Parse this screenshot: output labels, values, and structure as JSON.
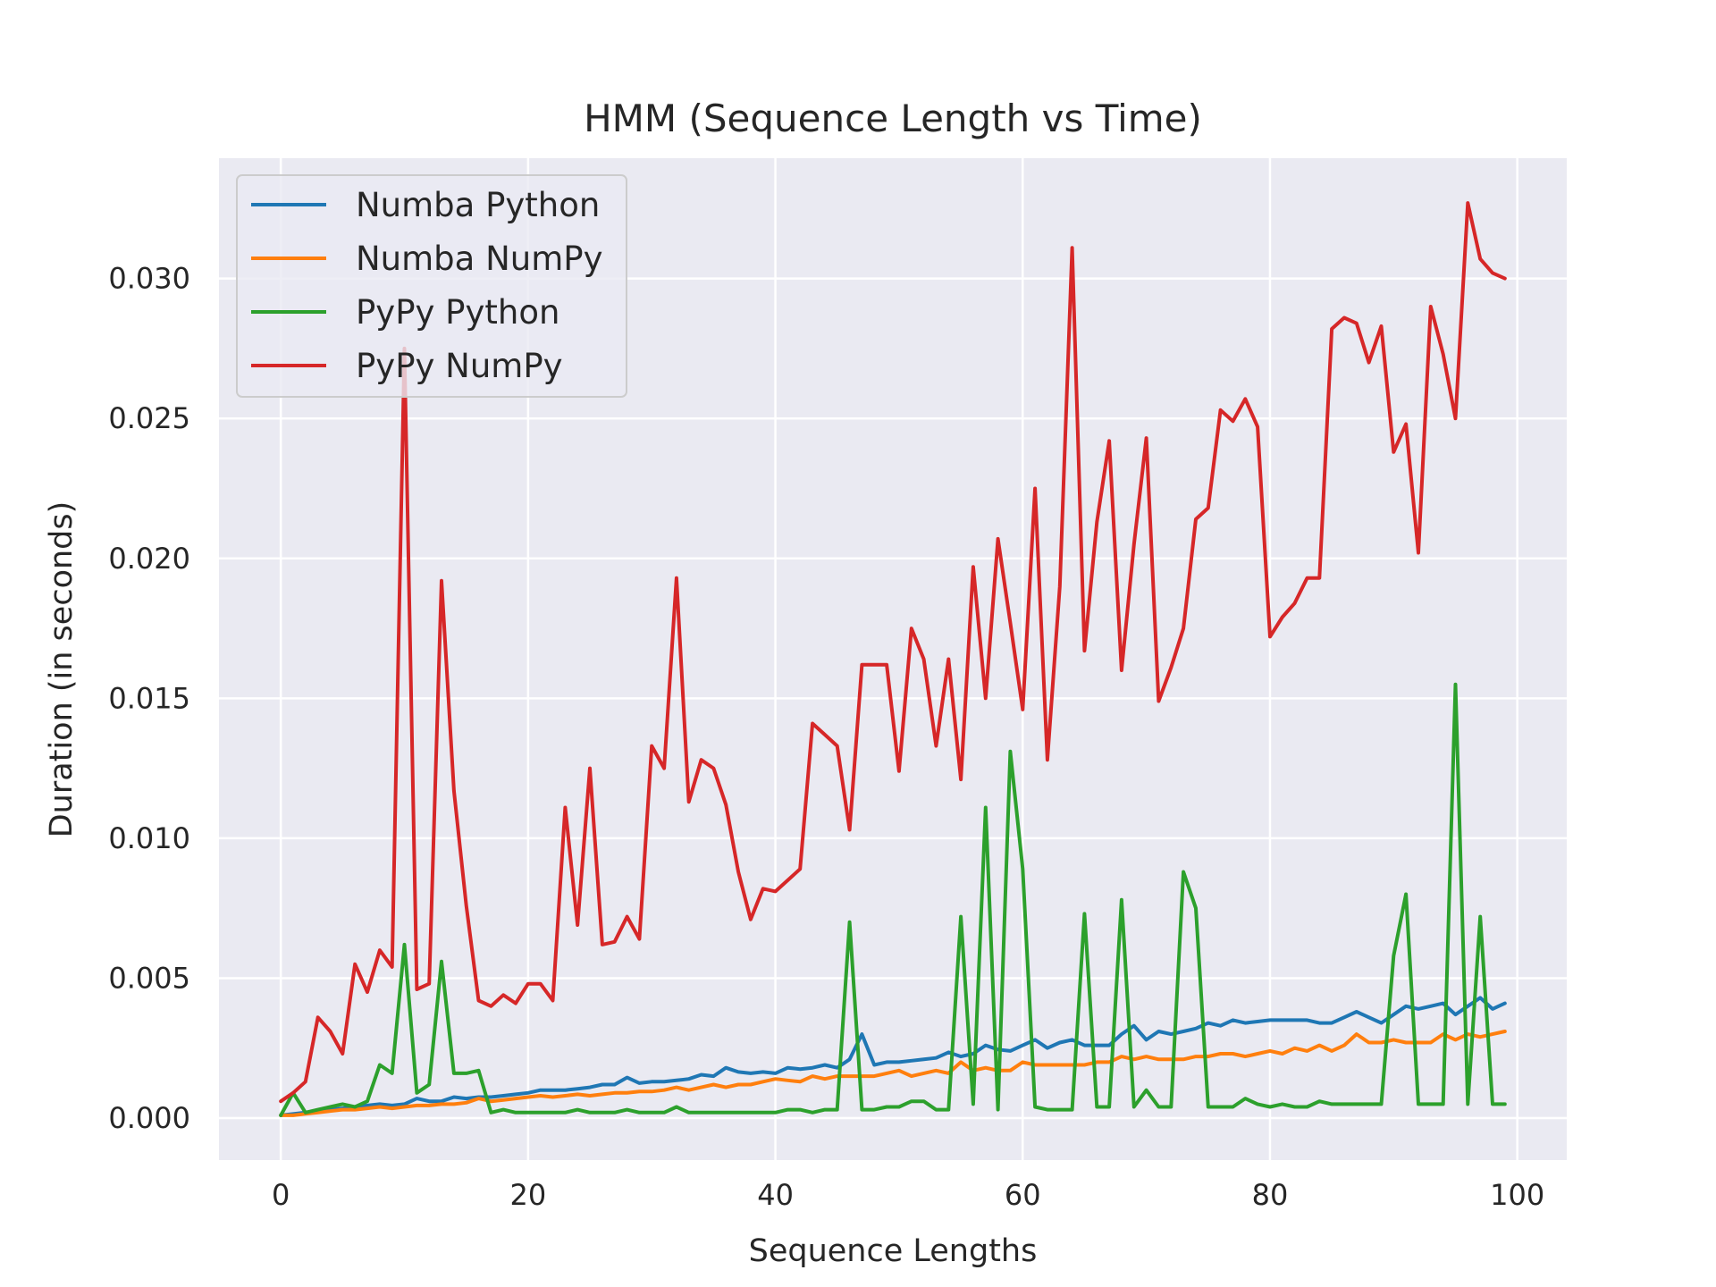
{
  "chart_data": {
    "type": "line",
    "title": "HMM (Sequence Length vs Time)",
    "xlabel": "Sequence Lengths",
    "ylabel": "Duration (in seconds)",
    "xlim": [
      -5,
      104
    ],
    "ylim": [
      -0.0015,
      0.0343
    ],
    "xticks": [
      0,
      20,
      40,
      60,
      80,
      100
    ],
    "yticks": [
      0.0,
      0.005,
      0.01,
      0.015,
      0.02,
      0.025,
      0.03
    ],
    "xtick_labels": [
      "0",
      "20",
      "40",
      "60",
      "80",
      "100"
    ],
    "ytick_labels": [
      "0.000",
      "0.005",
      "0.010",
      "0.015",
      "0.020",
      "0.025",
      "0.030"
    ],
    "grid": true,
    "legend_position": "top-left",
    "background": "#eaeaf2",
    "series": [
      {
        "name": "Numba Python",
        "color": "#1f77b4",
        "values": [
          0.0001,
          0.00015,
          0.0002,
          0.00025,
          0.0003,
          0.00035,
          0.0004,
          0.00045,
          0.0005,
          0.00045,
          0.0005,
          0.0007,
          0.0006,
          0.0006,
          0.00075,
          0.0007,
          0.00075,
          0.00075,
          0.0008,
          0.00085,
          0.0009,
          0.001,
          0.001,
          0.001,
          0.00105,
          0.0011,
          0.0012,
          0.0012,
          0.00145,
          0.00125,
          0.0013,
          0.0013,
          0.00135,
          0.0014,
          0.00155,
          0.0015,
          0.0018,
          0.00165,
          0.0016,
          0.00165,
          0.0016,
          0.0018,
          0.00175,
          0.0018,
          0.0019,
          0.0018,
          0.0021,
          0.003,
          0.0019,
          0.002,
          0.002,
          0.00205,
          0.0021,
          0.00215,
          0.00235,
          0.0022,
          0.0023,
          0.0026,
          0.00245,
          0.0024,
          0.0026,
          0.0028,
          0.0025,
          0.0027,
          0.0028,
          0.0026,
          0.0026,
          0.0026,
          0.003,
          0.0033,
          0.0028,
          0.0031,
          0.003,
          0.0031,
          0.0032,
          0.0034,
          0.0033,
          0.0035,
          0.0034,
          0.00345,
          0.0035,
          0.0035,
          0.0035,
          0.0035,
          0.0034,
          0.0034,
          0.0036,
          0.0038,
          0.0036,
          0.0034,
          0.0037,
          0.004,
          0.0039,
          0.004,
          0.0041,
          0.0037,
          0.004,
          0.0043,
          0.0039,
          0.0041
        ]
      },
      {
        "name": "Numba NumPy",
        "color": "#ff7f0e",
        "values": [
          0.0001,
          0.0001,
          0.00015,
          0.0002,
          0.00025,
          0.0003,
          0.0003,
          0.00035,
          0.0004,
          0.00035,
          0.0004,
          0.00045,
          0.00045,
          0.0005,
          0.0005,
          0.00055,
          0.0007,
          0.0006,
          0.00065,
          0.0007,
          0.00075,
          0.0008,
          0.00075,
          0.0008,
          0.00085,
          0.0008,
          0.00085,
          0.0009,
          0.0009,
          0.00095,
          0.00095,
          0.001,
          0.0011,
          0.001,
          0.0011,
          0.0012,
          0.0011,
          0.0012,
          0.0012,
          0.0013,
          0.0014,
          0.00135,
          0.0013,
          0.0015,
          0.0014,
          0.0015,
          0.0015,
          0.0015,
          0.0015,
          0.0016,
          0.0017,
          0.0015,
          0.0016,
          0.0017,
          0.0016,
          0.002,
          0.0017,
          0.0018,
          0.0017,
          0.0017,
          0.002,
          0.0019,
          0.0019,
          0.0019,
          0.0019,
          0.0019,
          0.002,
          0.002,
          0.0022,
          0.0021,
          0.0022,
          0.0021,
          0.0021,
          0.0021,
          0.0022,
          0.0022,
          0.0023,
          0.0023,
          0.0022,
          0.0023,
          0.0024,
          0.0023,
          0.0025,
          0.0024,
          0.0026,
          0.0024,
          0.0026,
          0.003,
          0.0027,
          0.0027,
          0.0028,
          0.0027,
          0.0027,
          0.0027,
          0.003,
          0.0028,
          0.003,
          0.0029,
          0.003,
          0.0031
        ]
      },
      {
        "name": "PyPy Python",
        "color": "#2ca02c",
        "values": [
          0.0001,
          0.0009,
          0.0002,
          0.0003,
          0.0004,
          0.0005,
          0.0004,
          0.0006,
          0.0019,
          0.0016,
          0.0062,
          0.0009,
          0.0012,
          0.0056,
          0.0016,
          0.0016,
          0.0017,
          0.0002,
          0.0003,
          0.0002,
          0.0002,
          0.0002,
          0.0002,
          0.0002,
          0.0003,
          0.0002,
          0.0002,
          0.0002,
          0.0003,
          0.0002,
          0.0002,
          0.0002,
          0.0004,
          0.0002,
          0.0002,
          0.0002,
          0.0002,
          0.0002,
          0.0002,
          0.0002,
          0.0002,
          0.0003,
          0.0003,
          0.0002,
          0.0003,
          0.0003,
          0.007,
          0.0003,
          0.0003,
          0.0004,
          0.0004,
          0.0006,
          0.0006,
          0.0003,
          0.0003,
          0.0072,
          0.0005,
          0.0111,
          0.0003,
          0.0131,
          0.0089,
          0.0004,
          0.0003,
          0.0003,
          0.0003,
          0.0073,
          0.0004,
          0.0004,
          0.0078,
          0.0004,
          0.001,
          0.0004,
          0.0004,
          0.0088,
          0.0075,
          0.0004,
          0.0004,
          0.0004,
          0.0007,
          0.0005,
          0.0004,
          0.0005,
          0.0004,
          0.0004,
          0.0006,
          0.0005,
          0.0005,
          0.0005,
          0.0005,
          0.0005,
          0.0058,
          0.008,
          0.0005,
          0.0005,
          0.0005,
          0.0155,
          0.0005,
          0.0072,
          0.0005,
          0.0005
        ]
      },
      {
        "name": "PyPy NumPy",
        "color": "#d62728",
        "values": [
          0.0006,
          0.0009,
          0.0013,
          0.0036,
          0.0031,
          0.0023,
          0.0055,
          0.0045,
          0.006,
          0.0054,
          0.0275,
          0.0046,
          0.0048,
          0.0192,
          0.0117,
          0.0076,
          0.0042,
          0.004,
          0.0044,
          0.0041,
          0.0048,
          0.0048,
          0.0042,
          0.0111,
          0.0069,
          0.0125,
          0.0062,
          0.0063,
          0.0072,
          0.0064,
          0.0133,
          0.0125,
          0.0193,
          0.0113,
          0.0128,
          0.0125,
          0.0112,
          0.0088,
          0.0071,
          0.0082,
          0.0081,
          0.0085,
          0.0089,
          0.0141,
          0.0137,
          0.0133,
          0.0103,
          0.0162,
          0.0162,
          0.0162,
          0.0124,
          0.0175,
          0.0164,
          0.0133,
          0.0164,
          0.0121,
          0.0197,
          0.015,
          0.0207,
          0.0177,
          0.0146,
          0.0225,
          0.0128,
          0.019,
          0.0311,
          0.0167,
          0.0213,
          0.0242,
          0.016,
          0.0205,
          0.0243,
          0.0149,
          0.0161,
          0.0175,
          0.0214,
          0.0218,
          0.0253,
          0.0249,
          0.0257,
          0.0247,
          0.0172,
          0.0179,
          0.0184,
          0.0193,
          0.0193,
          0.0282,
          0.0286,
          0.0284,
          0.027,
          0.0283,
          0.0238,
          0.0248,
          0.0202,
          0.029,
          0.0273,
          0.025,
          0.0327,
          0.0307,
          0.0302,
          0.03
        ]
      }
    ]
  }
}
